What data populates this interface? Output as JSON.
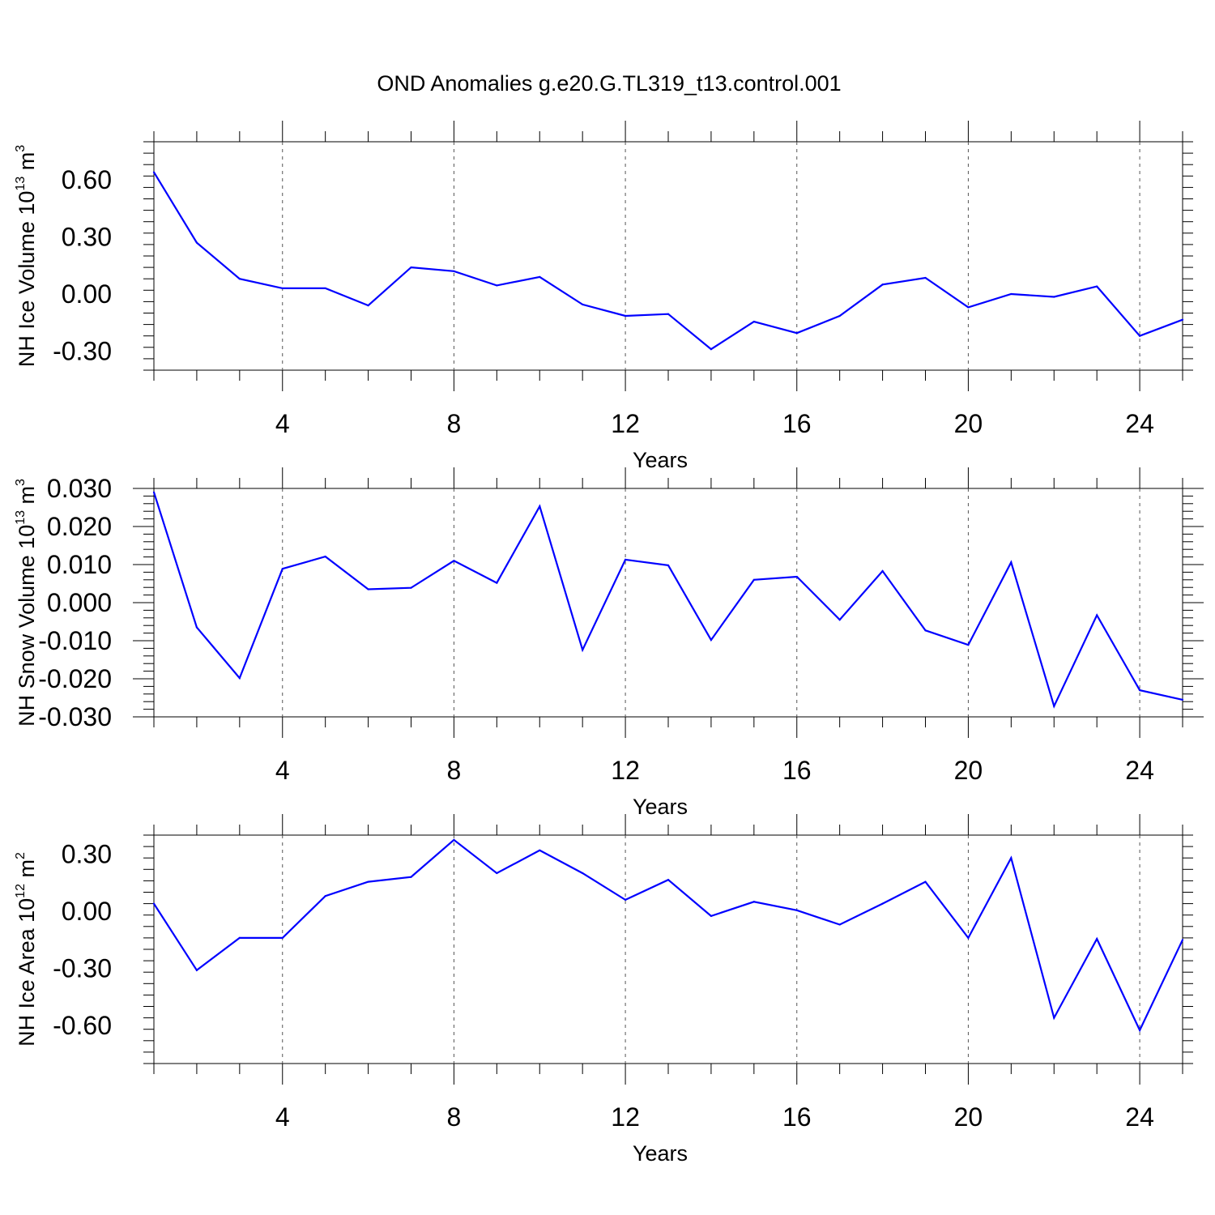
{
  "title": "OND Anomalies g.e20.G.TL319_t13.control.001",
  "line_color": "#0000ff",
  "chart_data": [
    {
      "type": "line",
      "xlabel": "Years",
      "ylabel": {
        "text": "NH Ice Volume 10",
        "exponent": "13",
        "unit": "m",
        "unit_exponent": "3"
      },
      "xlim": [
        1,
        25
      ],
      "ylim": [
        -0.4,
        0.8
      ],
      "xticks": [
        4,
        8,
        12,
        16,
        20,
        24
      ],
      "xtick_labels": [
        "4",
        "8",
        "12",
        "16",
        "20",
        "24"
      ],
      "yticks": [
        -0.3,
        0.0,
        0.3,
        0.6
      ],
      "ytick_labels": [
        "-0.30",
        "0.00",
        "0.30",
        "0.60"
      ],
      "x": [
        1,
        2,
        3,
        4,
        5,
        6,
        7,
        8,
        9,
        10,
        11,
        12,
        13,
        14,
        15,
        16,
        17,
        18,
        19,
        20,
        21,
        22,
        23,
        24,
        25
      ],
      "values": [
        0.64,
        0.27,
        0.08,
        0.03,
        0.03,
        -0.06,
        0.14,
        0.12,
        0.045,
        0.09,
        -0.055,
        -0.115,
        -0.105,
        -0.29,
        -0.145,
        -0.205,
        -0.115,
        0.05,
        0.085,
        -0.07,
        0.0,
        -0.015,
        0.04,
        -0.22,
        -0.135
      ]
    },
    {
      "type": "line",
      "xlabel": "Years",
      "ylabel": {
        "text": "NH Snow Volume 10",
        "exponent": "13",
        "unit": "m",
        "unit_exponent": "3"
      },
      "xlim": [
        1,
        25
      ],
      "ylim": [
        -0.03,
        0.03
      ],
      "xticks": [
        4,
        8,
        12,
        16,
        20,
        24
      ],
      "xtick_labels": [
        "4",
        "8",
        "12",
        "16",
        "20",
        "24"
      ],
      "yticks": [
        -0.03,
        -0.02,
        -0.01,
        0.0,
        0.01,
        0.02,
        0.03
      ],
      "ytick_labels": [
        "-0.030",
        "-0.020",
        "-0.010",
        "0.000",
        "0.010",
        "0.020",
        "0.030"
      ],
      "x": [
        1,
        2,
        3,
        4,
        5,
        6,
        7,
        8,
        9,
        10,
        11,
        12,
        13,
        14,
        15,
        16,
        17,
        18,
        19,
        20,
        21,
        22,
        23,
        24,
        25
      ],
      "values": [
        0.029,
        -0.0065,
        -0.0198,
        0.0089,
        0.0121,
        0.0035,
        0.0039,
        0.011,
        0.0052,
        0.0253,
        -0.0124,
        0.0113,
        0.0098,
        -0.0098,
        0.006,
        0.0068,
        -0.0045,
        0.0083,
        -0.0073,
        -0.0111,
        0.0106,
        -0.0272,
        -0.0033,
        -0.023,
        -0.0255
      ]
    },
    {
      "type": "line",
      "xlabel": "Years",
      "ylabel": {
        "text": "NH Ice Area 10",
        "exponent": "12",
        "unit": "m",
        "unit_exponent": "2"
      },
      "xlim": [
        1,
        25
      ],
      "ylim": [
        -0.8,
        0.4
      ],
      "xticks": [
        4,
        8,
        12,
        16,
        20,
        24
      ],
      "xtick_labels": [
        "4",
        "8",
        "12",
        "16",
        "20",
        "24"
      ],
      "yticks": [
        -0.6,
        -0.3,
        0.0,
        0.3
      ],
      "ytick_labels": [
        "-0.60",
        "-0.30",
        "0.00",
        "0.30"
      ],
      "x": [
        1,
        2,
        3,
        4,
        5,
        6,
        7,
        8,
        9,
        10,
        11,
        12,
        13,
        14,
        15,
        16,
        17,
        18,
        19,
        20,
        21,
        22,
        23,
        24,
        25
      ],
      "values": [
        0.04,
        -0.31,
        -0.14,
        -0.14,
        0.08,
        0.155,
        0.18,
        0.375,
        0.2,
        0.32,
        0.2,
        0.06,
        0.165,
        -0.025,
        0.05,
        0.005,
        -0.07,
        0.04,
        0.155,
        -0.14,
        0.28,
        -0.56,
        -0.145,
        -0.625,
        -0.15
      ]
    }
  ]
}
